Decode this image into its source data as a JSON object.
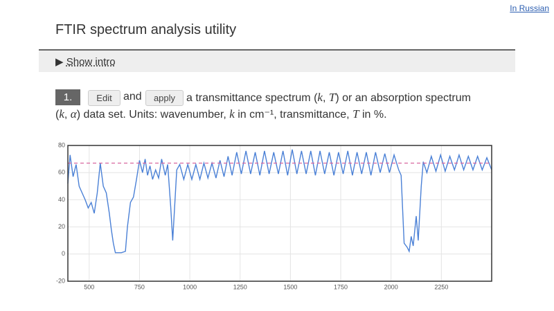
{
  "header": {
    "link": "In Russian",
    "title": "FTIR spectrum analysis utility"
  },
  "intro": {
    "toggle": "Show intro"
  },
  "step": {
    "number": "1.",
    "edit": "Edit",
    "and": "and",
    "apply": "apply",
    "lines": [
      [
        {
          "text": "a transmittance spectrum (",
          "italic": false
        },
        {
          "text": "k",
          "italic": true
        },
        {
          "text": ", ",
          "italic": false
        },
        {
          "text": "T",
          "italic": true
        },
        {
          "text": ") or an absorption spectrum",
          "italic": false
        }
      ],
      [
        {
          "text": "(",
          "italic": false
        },
        {
          "text": "k",
          "italic": true
        },
        {
          "text": ", ",
          "italic": false
        },
        {
          "text": "α",
          "italic": true
        },
        {
          "text": ") data set. Units: wavenumber, ",
          "italic": false
        },
        {
          "text": "k",
          "italic": true
        },
        {
          "text": " in cm⁻¹, transmittance, ",
          "italic": false
        },
        {
          "text": "T",
          "italic": true
        },
        {
          "text": " in %.",
          "italic": false
        }
      ]
    ]
  },
  "chart_data": {
    "type": "line",
    "color": "#4a80d6",
    "x": [
      394,
      405,
      420,
      435,
      450,
      465,
      480,
      495,
      510,
      525,
      540,
      555,
      570,
      585,
      600,
      610,
      620,
      630,
      660,
      680,
      690,
      705,
      720,
      735,
      750,
      765,
      778,
      790,
      802,
      815,
      830,
      845,
      860,
      878,
      890,
      905,
      915,
      935,
      950,
      970,
      990,
      1010,
      1030,
      1050,
      1070,
      1090,
      1110,
      1130,
      1150,
      1170,
      1190,
      1210,
      1233,
      1256,
      1279,
      1302,
      1325,
      1348,
      1371,
      1394,
      1417,
      1440,
      1463,
      1486,
      1509,
      1532,
      1555,
      1578,
      1601,
      1624,
      1647,
      1670,
      1693,
      1716,
      1739,
      1762,
      1785,
      1808,
      1831,
      1854,
      1877,
      1900,
      1923,
      1946,
      1969,
      1992,
      2015,
      2038,
      2050,
      2065,
      2080,
      2090,
      2100,
      2110,
      2125,
      2135,
      2150,
      2160,
      2178,
      2200,
      2223,
      2246,
      2269,
      2292,
      2315,
      2338,
      2361,
      2384,
      2407,
      2430,
      2453,
      2476,
      2500
    ],
    "values": [
      52,
      73,
      57,
      66,
      50,
      45,
      40,
      34,
      38,
      30,
      45,
      67,
      50,
      45,
      30,
      18,
      8,
      1,
      1,
      2,
      20,
      38,
      42,
      55,
      69,
      60,
      70,
      58,
      65,
      55,
      62,
      56,
      70,
      58,
      66,
      35,
      10,
      62,
      66,
      55,
      66,
      55,
      66,
      55,
      67,
      56,
      67,
      56,
      69,
      57,
      72,
      58,
      75,
      59,
      76,
      59,
      75,
      58,
      76,
      59,
      75,
      59,
      76,
      58,
      77,
      59,
      76,
      59,
      76,
      58,
      76,
      59,
      75,
      58,
      75,
      59,
      76,
      58,
      75,
      59,
      75,
      58,
      75,
      60,
      74,
      60,
      73,
      62,
      58,
      8,
      5,
      2,
      13,
      6,
      28,
      10,
      50,
      68,
      60,
      72,
      61,
      73,
      61,
      72,
      62,
      73,
      62,
      72,
      62,
      72,
      62,
      71,
      62
    ],
    "reference_line": {
      "value": 67,
      "color": "#d9659e"
    },
    "xlim": [
      394,
      2500
    ],
    "xticks": [
      500,
      750,
      1000,
      1250,
      1500,
      1750,
      2000,
      2250
    ],
    "ylim": [
      -20,
      80
    ],
    "yticks": [
      -20,
      0,
      20,
      40,
      60,
      80
    ],
    "grid": true
  }
}
